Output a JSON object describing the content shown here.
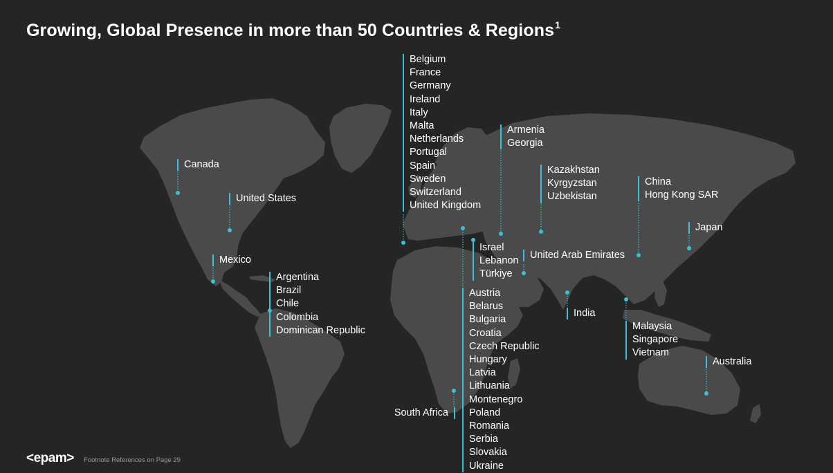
{
  "page": {
    "title": "Growing, Global Presence in more than 50 Countries & Regions",
    "title_superscript": "1",
    "logo_text": "<epam>",
    "footnote": "Footnote References on Page 29",
    "accent_color": "#39c2d7",
    "background_color": "#252525",
    "map_land_color": "#4a4a4a"
  },
  "groups": {
    "canada": [
      "Canada"
    ],
    "united_states": [
      "United States"
    ],
    "mexico": [
      "Mexico"
    ],
    "latam": [
      "Argentina",
      "Brazil",
      "Chile",
      "Colombia",
      "Dominican Republic"
    ],
    "western_europe": [
      "Belgium",
      "France",
      "Germany",
      "Ireland",
      "Italy",
      "Malta",
      "Netherlands",
      "Portugal",
      "Spain",
      "Sweden",
      "Switzerland",
      "United Kingdom"
    ],
    "caucasus": [
      "Armenia",
      "Georgia"
    ],
    "central_asia": [
      "Kazakhstan",
      "Kyrgyzstan",
      "Uzbekistan"
    ],
    "china": [
      "China",
      "Hong Kong SAR"
    ],
    "japan": [
      "Japan"
    ],
    "middle_east": [
      "Israel",
      "Lebanon",
      "Türkiye"
    ],
    "uae": [
      "United Arab Emirates"
    ],
    "india": [
      "India"
    ],
    "southeast_asia": [
      "Malaysia",
      "Singapore",
      "Vietnam"
    ],
    "australia": [
      "Australia"
    ],
    "south_africa": [
      "South Africa"
    ],
    "central_eastern_europe": [
      "Austria",
      "Belarus",
      "Bulgaria",
      "Croatia",
      "Czech Republic",
      "Hungary",
      "Latvia",
      "Lithuania",
      "Montenegro",
      "Poland",
      "Romania",
      "Serbia",
      "Slovakia",
      "Ukraine"
    ]
  }
}
